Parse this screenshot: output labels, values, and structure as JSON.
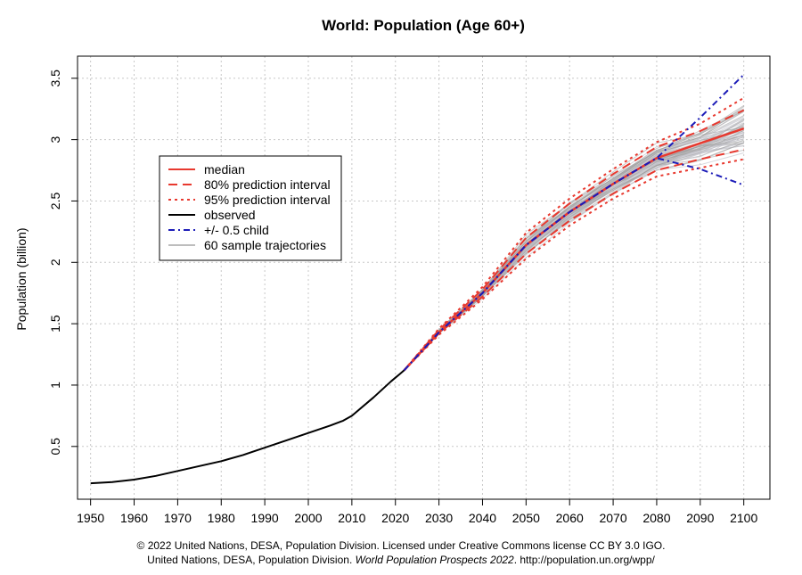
{
  "chart_data": {
    "type": "line",
    "title": "World: Population (Age 60+)",
    "xlabel": "",
    "ylabel": "Population (billion)",
    "xlim": [
      1947,
      2106
    ],
    "ylim": [
      0.07,
      3.68
    ],
    "x_ticks": [
      1950,
      1960,
      1970,
      1980,
      1990,
      2000,
      2010,
      2020,
      2030,
      2040,
      2050,
      2060,
      2070,
      2080,
      2090,
      2100
    ],
    "y_ticks": [
      0.5,
      1,
      1.5,
      2,
      2.5,
      3,
      3.5
    ],
    "y_tick_labels": [
      "0.5",
      "1",
      "1.5",
      "2",
      "2.5",
      "3",
      "3.5"
    ],
    "grid": true,
    "legend_position": "upper-left",
    "legend": [
      {
        "label": "median",
        "color": "#e8392f",
        "style": "solid"
      },
      {
        "label": "80% prediction interval",
        "color": "#e8392f",
        "style": "dashed"
      },
      {
        "label": "95% prediction interval",
        "color": "#e8392f",
        "style": "dotted"
      },
      {
        "label": "observed",
        "color": "#000000",
        "style": "solid"
      },
      {
        "label": "+/- 0.5 child",
        "color": "#1c1cb8",
        "style": "dashdot"
      },
      {
        "label": "60 sample trajectories",
        "color": "#bdbdbd",
        "style": "solid"
      }
    ],
    "series": [
      {
        "name": "observed",
        "x": [
          1950,
          1955,
          1960,
          1965,
          1970,
          1975,
          1980,
          1985,
          1990,
          1995,
          2000,
          2005,
          2008,
          2010,
          2015,
          2019,
          2020,
          2021,
          2022
        ],
        "y": [
          0.2,
          0.21,
          0.23,
          0.26,
          0.3,
          0.34,
          0.38,
          0.43,
          0.49,
          0.55,
          0.61,
          0.67,
          0.71,
          0.75,
          0.9,
          1.03,
          1.06,
          1.09,
          1.12
        ]
      },
      {
        "name": "median",
        "x": [
          2022,
          2030,
          2040,
          2050,
          2060,
          2070,
          2080,
          2090,
          2100
        ],
        "y": [
          1.12,
          1.43,
          1.75,
          2.14,
          2.41,
          2.64,
          2.85,
          2.97,
          3.09
        ]
      },
      {
        "name": "80% prediction interval upper",
        "x": [
          2022,
          2030,
          2040,
          2050,
          2060,
          2070,
          2080,
          2090,
          2100
        ],
        "y": [
          1.12,
          1.45,
          1.78,
          2.2,
          2.48,
          2.72,
          2.94,
          3.07,
          3.24
        ]
      },
      {
        "name": "80% prediction interval lower",
        "x": [
          2022,
          2030,
          2040,
          2050,
          2060,
          2070,
          2080,
          2090,
          2100
        ],
        "y": [
          1.12,
          1.42,
          1.72,
          2.07,
          2.34,
          2.56,
          2.75,
          2.84,
          2.92
        ]
      },
      {
        "name": "95% prediction interval upper",
        "x": [
          2022,
          2030,
          2040,
          2050,
          2060,
          2070,
          2080,
          2090,
          2100
        ],
        "y": [
          1.12,
          1.46,
          1.8,
          2.24,
          2.52,
          2.76,
          2.98,
          3.13,
          3.34
        ]
      },
      {
        "name": "95% prediction interval lower",
        "x": [
          2022,
          2030,
          2040,
          2050,
          2060,
          2070,
          2080,
          2090,
          2100
        ],
        "y": [
          1.12,
          1.41,
          1.7,
          2.03,
          2.3,
          2.52,
          2.7,
          2.77,
          2.84
        ]
      },
      {
        "name": "+/- 0.5 child upper",
        "x": [
          2022,
          2030,
          2040,
          2050,
          2060,
          2070,
          2080,
          2090,
          2100
        ],
        "y": [
          1.12,
          1.43,
          1.75,
          2.14,
          2.41,
          2.64,
          2.85,
          3.18,
          3.53
        ]
      },
      {
        "name": "+/- 0.5 child lower",
        "x": [
          2022,
          2030,
          2040,
          2050,
          2060,
          2070,
          2080,
          2090,
          2100
        ],
        "y": [
          1.12,
          1.43,
          1.75,
          2.14,
          2.41,
          2.64,
          2.85,
          2.76,
          2.63
        ]
      }
    ]
  },
  "footer": {
    "line1": "© 2022 United Nations, DESA, Population Division. Licensed under Creative Commons license CC BY 3.0 IGO.",
    "line2_prefix": "United Nations, DESA, Population Division. ",
    "line2_italic": "World Population Prospects 2022",
    "line2_suffix": ". http://population.un.org/wpp/"
  }
}
